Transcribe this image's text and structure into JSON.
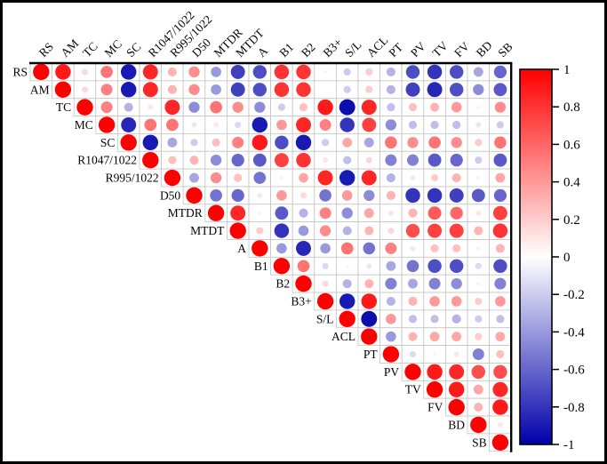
{
  "frame": {
    "background_color": "#ffffff",
    "border_color": "#000000"
  },
  "chart_data": {
    "type": "heatmap",
    "subtype": "correlation-matrix-upper-triangle-circles",
    "title": "",
    "legend_position": "right-colorbar",
    "grid": true,
    "positive_color": "#ff0000",
    "negative_color": "#0000aa",
    "neutral_color": "#ffffff",
    "grid_color": "#c4c4c4",
    "variables": [
      "RS",
      "AM",
      "TC",
      "MC",
      "SC",
      "R1047/1022",
      "R995/1022",
      "D50",
      "MTDR",
      "MTDT",
      "A",
      "B1",
      "B2",
      "B3+",
      "S/L",
      "ACL",
      "PT",
      "PV",
      "TV",
      "FV",
      "BD",
      "SB"
    ],
    "matrix": [
      [
        1.0,
        0.9,
        0.15,
        0.55,
        -0.9,
        0.85,
        0.3,
        0.45,
        -0.4,
        -0.75,
        -0.7,
        0.8,
        0.8,
        0.05,
        -0.2,
        0.2,
        -0.3,
        -0.7,
        -0.8,
        -0.7,
        -0.35,
        -0.6
      ],
      [
        null,
        1.0,
        0.15,
        0.5,
        -0.9,
        0.85,
        0.3,
        0.45,
        -0.4,
        -0.75,
        -0.7,
        0.8,
        0.8,
        0.0,
        -0.2,
        0.2,
        -0.3,
        -0.75,
        -0.85,
        -0.7,
        -0.45,
        -0.65
      ],
      [
        null,
        null,
        1.0,
        0.5,
        -0.3,
        0.1,
        0.85,
        -0.45,
        0.55,
        0.45,
        -0.45,
        -0.2,
        0.25,
        0.9,
        -0.95,
        0.85,
        -0.25,
        0.25,
        0.3,
        0.4,
        0.05,
        0.45
      ],
      [
        null,
        null,
        null,
        1.0,
        -0.85,
        0.55,
        0.55,
        -0.1,
        0.1,
        -0.15,
        -0.9,
        0.4,
        0.85,
        0.5,
        -0.8,
        0.75,
        -0.45,
        -0.25,
        -0.25,
        -0.25,
        -0.1,
        -0.2
      ],
      [
        null,
        null,
        null,
        null,
        1.0,
        -0.9,
        -0.35,
        -0.2,
        0.25,
        0.5,
        0.9,
        -0.7,
        -0.9,
        -0.2,
        0.35,
        -0.35,
        0.55,
        0.45,
        0.55,
        0.45,
        0.2,
        0.55
      ],
      [
        null,
        null,
        null,
        null,
        null,
        1.0,
        0.25,
        0.3,
        -0.45,
        -0.6,
        -0.65,
        0.75,
        0.8,
        0.1,
        -0.25,
        0.15,
        -0.5,
        -0.5,
        -0.65,
        -0.6,
        -0.2,
        -0.65
      ],
      [
        null,
        null,
        null,
        null,
        null,
        null,
        1.0,
        -0.35,
        0.45,
        0.25,
        -0.55,
        -0.05,
        0.35,
        0.85,
        -0.9,
        0.85,
        -0.3,
        0.1,
        0.2,
        0.3,
        -0.05,
        0.35
      ],
      [
        null,
        null,
        null,
        null,
        null,
        null,
        null,
        1.0,
        -0.55,
        -0.6,
        0.1,
        0.4,
        0.15,
        -0.55,
        0.4,
        -0.45,
        0.3,
        -0.8,
        -0.8,
        -0.75,
        -0.65,
        -0.6
      ],
      [
        null,
        null,
        null,
        null,
        null,
        null,
        null,
        null,
        1.0,
        0.85,
        0.05,
        -0.65,
        -0.3,
        0.5,
        -0.45,
        0.35,
        0.1,
        0.3,
        0.65,
        0.6,
        0.1,
        0.75
      ],
      [
        null,
        null,
        null,
        null,
        null,
        null,
        null,
        null,
        null,
        1.0,
        0.2,
        -0.8,
        -0.4,
        0.45,
        -0.3,
        0.3,
        0.15,
        0.7,
        0.75,
        0.75,
        0.3,
        0.8
      ],
      [
        null,
        null,
        null,
        null,
        null,
        null,
        null,
        null,
        null,
        null,
        1.0,
        -0.4,
        -0.85,
        -0.4,
        0.55,
        -0.55,
        0.5,
        0.1,
        0.25,
        0.25,
        -0.05,
        0.3
      ],
      [
        null,
        null,
        null,
        null,
        null,
        null,
        null,
        null,
        null,
        null,
        null,
        1.0,
        0.55,
        -0.15,
        0.05,
        -0.1,
        -0.35,
        -0.55,
        -0.7,
        -0.7,
        -0.15,
        -0.7
      ],
      [
        null,
        null,
        null,
        null,
        null,
        null,
        null,
        null,
        null,
        null,
        null,
        null,
        1.0,
        0.15,
        -0.3,
        0.3,
        -0.5,
        -0.35,
        -0.5,
        -0.45,
        -0.05,
        -0.5
      ],
      [
        null,
        null,
        null,
        null,
        null,
        null,
        null,
        null,
        null,
        null,
        null,
        null,
        null,
        1.0,
        -0.9,
        0.9,
        -0.3,
        0.3,
        0.4,
        0.4,
        0.2,
        0.4
      ],
      [
        null,
        null,
        null,
        null,
        null,
        null,
        null,
        null,
        null,
        null,
        null,
        null,
        null,
        null,
        1.0,
        -0.95,
        0.4,
        -0.25,
        -0.25,
        -0.3,
        -0.2,
        -0.25
      ],
      [
        null,
        null,
        null,
        null,
        null,
        null,
        null,
        null,
        null,
        null,
        null,
        null,
        null,
        null,
        null,
        1.0,
        -0.4,
        0.3,
        0.35,
        0.35,
        0.2,
        0.35
      ],
      [
        null,
        null,
        null,
        null,
        null,
        null,
        null,
        null,
        null,
        null,
        null,
        null,
        null,
        null,
        null,
        null,
        1.0,
        -0.15,
        0.05,
        0.1,
        -0.5,
        0.25
      ],
      [
        null,
        null,
        null,
        null,
        null,
        null,
        null,
        null,
        null,
        null,
        null,
        null,
        null,
        null,
        null,
        null,
        null,
        1.0,
        0.9,
        0.85,
        0.7,
        0.7
      ],
      [
        null,
        null,
        null,
        null,
        null,
        null,
        null,
        null,
        null,
        null,
        null,
        null,
        null,
        null,
        null,
        null,
        null,
        null,
        1.0,
        0.9,
        0.35,
        0.85
      ],
      [
        null,
        null,
        null,
        null,
        null,
        null,
        null,
        null,
        null,
        null,
        null,
        null,
        null,
        null,
        null,
        null,
        null,
        null,
        null,
        1.0,
        0.3,
        0.9
      ],
      [
        null,
        null,
        null,
        null,
        null,
        null,
        null,
        null,
        null,
        null,
        null,
        null,
        null,
        null,
        null,
        null,
        null,
        null,
        null,
        null,
        1.0,
        0.1
      ],
      [
        null,
        null,
        null,
        null,
        null,
        null,
        null,
        null,
        null,
        null,
        null,
        null,
        null,
        null,
        null,
        null,
        null,
        null,
        null,
        null,
        null,
        1.0
      ]
    ],
    "colorbar": {
      "range": [
        -1,
        1
      ],
      "tick_labels": [
        "1",
        "0.8",
        "0.6",
        "0.4",
        "0.2",
        "0",
        "-0.2",
        "-0.4",
        "-0.6",
        "-0.8",
        "-1"
      ],
      "top_color": "#ff0000",
      "mid_color": "#ffffff",
      "bottom_color": "#0000aa"
    }
  }
}
